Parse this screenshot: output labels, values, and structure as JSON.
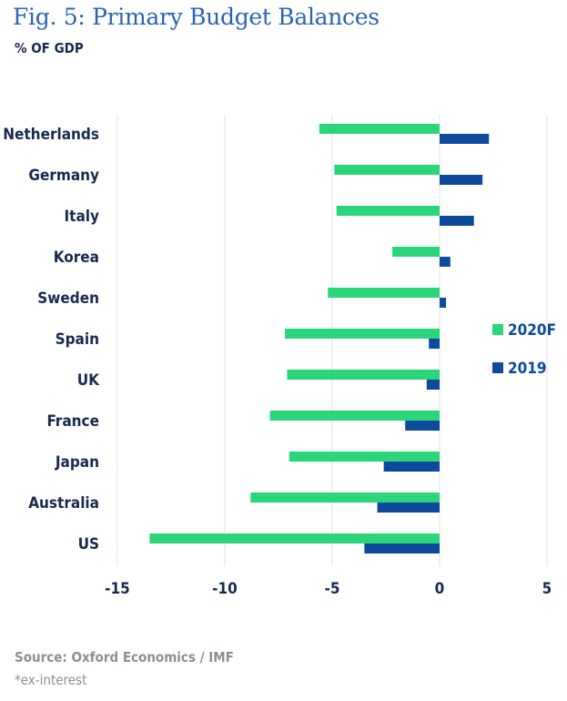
{
  "header": {
    "title": "Fig. 5: Primary Budget Balances",
    "subtitle": "% OF GDP"
  },
  "footer": {
    "source": "Source: Oxford Economics / IMF",
    "note": "*ex-interest"
  },
  "colors": {
    "series_2020F": "#2bd67b",
    "series_2019": "#0e4a9c",
    "grid": "#e3e3e3",
    "axis_text": "#1a2a4f"
  },
  "chart_data": {
    "type": "bar",
    "orientation": "horizontal",
    "title": "Fig. 5: Primary Budget Balances",
    "subtitle": "% OF GDP",
    "categories": [
      "Netherlands",
      "Germany",
      "Italy",
      "Korea",
      "Sweden",
      "Spain",
      "UK",
      "France",
      "Japan",
      "Australia",
      "US"
    ],
    "series": [
      {
        "name": "2020F",
        "values": [
          -5.6,
          -4.9,
          -4.8,
          -2.2,
          -5.2,
          -7.2,
          -7.1,
          -7.9,
          -7.0,
          -8.8,
          -13.5
        ]
      },
      {
        "name": "2019",
        "values": [
          2.3,
          2.0,
          1.6,
          0.5,
          0.3,
          -0.5,
          -0.6,
          -1.6,
          -2.6,
          -2.9,
          -3.5
        ]
      }
    ],
    "xlim": [
      -15,
      5
    ],
    "xticks": [
      "-15",
      "-10",
      "-5",
      "0",
      "5"
    ],
    "grid": true,
    "legend_position": "right"
  }
}
